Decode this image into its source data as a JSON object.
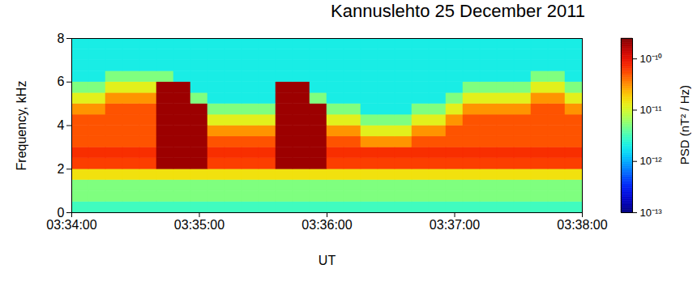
{
  "chart_data": {
    "type": "heatmap",
    "title": "Kannuslehto 25 December 2011",
    "x_label": "UT",
    "y_label": "Frequency, kHz",
    "xlim": [
      0,
      240
    ],
    "xticks": [
      {
        "value": 0,
        "label": "03:34:00"
      },
      {
        "value": 60,
        "label": "03:35:00"
      },
      {
        "value": 120,
        "label": "03:36:00"
      },
      {
        "value": 180,
        "label": "03:37:00"
      },
      {
        "value": 240,
        "label": "03:38:00"
      }
    ],
    "ylim": [
      0,
      8
    ],
    "yticks": [
      0,
      2,
      4,
      6,
      8
    ],
    "time_bins": [
      0,
      8,
      16,
      24,
      32,
      40,
      48,
      56,
      64,
      72,
      80,
      88,
      96,
      104,
      112,
      120,
      128,
      136,
      144,
      152,
      160,
      168,
      176,
      184,
      192,
      200,
      208,
      216,
      224,
      232,
      240
    ],
    "freq_bins": [
      0,
      0.5,
      1,
      1.5,
      2,
      2.5,
      3,
      3.5,
      4,
      4.5,
      5,
      5.5,
      6,
      6.5,
      7,
      7.5,
      8
    ],
    "values": [
      [
        3e-12,
        3e-12,
        3e-12,
        3e-12,
        3e-12,
        3e-12,
        3e-12,
        3e-12,
        3e-12,
        3e-12,
        3e-12,
        3e-12,
        3e-12,
        3e-12,
        3e-12,
        3e-12,
        3e-12,
        3e-12,
        3e-12,
        3e-12,
        3e-12,
        3e-12,
        3e-12,
        3e-12,
        3e-12,
        3e-12,
        3e-12,
        3e-12,
        3e-12,
        3e-12
      ],
      [
        5e-12,
        5e-12,
        5e-12,
        5e-12,
        5e-12,
        5e-12,
        5e-12,
        5e-12,
        5e-12,
        5e-12,
        5e-12,
        5e-12,
        5e-12,
        5e-12,
        5e-12,
        5e-12,
        5e-12,
        5e-12,
        5e-12,
        5e-12,
        5e-12,
        5e-12,
        5e-12,
        5e-12,
        5e-12,
        5e-12,
        5e-12,
        5e-12,
        5e-12,
        5e-12
      ],
      [
        5e-12,
        5e-12,
        5e-12,
        5e-12,
        5e-12,
        5e-12,
        5e-12,
        5e-12,
        5e-12,
        5e-12,
        5e-12,
        5e-12,
        5e-12,
        5e-12,
        5e-12,
        5e-12,
        5e-12,
        5e-12,
        5e-12,
        5e-12,
        5e-12,
        5e-12,
        5e-12,
        5e-12,
        5e-12,
        5e-12,
        5e-12,
        5e-12,
        5e-12,
        5e-12
      ],
      [
        1.5e-11,
        1.5e-11,
        1.5e-11,
        1.5e-11,
        1.5e-11,
        1.5e-11,
        1.5e-11,
        1.5e-11,
        1.5e-11,
        1.5e-11,
        1.5e-11,
        1.5e-11,
        1.5e-11,
        1.5e-11,
        1.5e-11,
        1.5e-11,
        1.5e-11,
        1.5e-11,
        1.5e-11,
        1.5e-11,
        1.5e-11,
        1.5e-11,
        1.5e-11,
        1.5e-11,
        1.5e-11,
        1.5e-11,
        1.5e-11,
        1.5e-11,
        1.5e-11,
        1.5e-11
      ],
      [
        6e-11,
        6e-11,
        6e-11,
        6e-11,
        6e-11,
        2e-10,
        2e-10,
        2e-10,
        6e-11,
        6e-11,
        6e-11,
        6e-11,
        2e-10,
        2e-10,
        2e-10,
        6e-11,
        6e-11,
        6e-11,
        6e-11,
        6e-11,
        6e-11,
        6e-11,
        6e-11,
        6e-11,
        6e-11,
        6e-11,
        6e-11,
        6e-11,
        6e-11,
        6e-11
      ],
      [
        7e-11,
        7e-11,
        7e-11,
        7e-11,
        7e-11,
        2e-10,
        2e-10,
        2e-10,
        7e-11,
        7e-11,
        7e-11,
        7e-11,
        2e-10,
        2e-10,
        2e-10,
        7e-11,
        7e-11,
        7e-11,
        7e-11,
        7e-11,
        7e-11,
        7e-11,
        7e-11,
        7e-11,
        7e-11,
        7e-11,
        7e-11,
        7e-11,
        7e-11,
        7e-11
      ],
      [
        5e-11,
        5e-11,
        5e-11,
        5e-11,
        5e-11,
        2e-10,
        2e-10,
        2e-10,
        5e-11,
        5e-11,
        5e-11,
        5e-11,
        2e-10,
        2e-10,
        2e-10,
        5e-11,
        5e-11,
        3e-11,
        3e-11,
        3e-11,
        5e-11,
        5e-11,
        5e-11,
        5e-11,
        5e-11,
        5e-11,
        5e-11,
        5e-11,
        5e-11,
        5e-11
      ],
      [
        5e-11,
        5e-11,
        5e-11,
        5e-11,
        5e-11,
        2e-10,
        2e-10,
        2e-10,
        3e-11,
        3e-11,
        3e-11,
        3e-11,
        2e-10,
        2e-10,
        2e-10,
        3e-11,
        3e-11,
        1.2e-11,
        1.2e-11,
        1.2e-11,
        3e-11,
        3e-11,
        5e-11,
        5e-11,
        5e-11,
        5e-11,
        5e-11,
        5e-11,
        5e-11,
        5e-11
      ],
      [
        5e-11,
        5e-11,
        5e-11,
        5e-11,
        5e-11,
        2e-10,
        2e-10,
        2e-10,
        1.2e-11,
        1.2e-11,
        1.2e-11,
        1.2e-11,
        2e-10,
        2e-10,
        2e-10,
        1.2e-11,
        1.2e-11,
        5e-12,
        5e-12,
        5e-12,
        1.2e-11,
        1.2e-11,
        3e-11,
        5e-11,
        5e-11,
        5e-11,
        5e-11,
        5e-11,
        5e-11,
        5e-11
      ],
      [
        3e-11,
        3e-11,
        5e-11,
        5e-11,
        5e-11,
        2e-10,
        2e-10,
        2e-10,
        5e-12,
        5e-12,
        5e-12,
        5e-12,
        2e-10,
        2e-10,
        2e-10,
        5e-12,
        5e-12,
        2e-12,
        2e-12,
        2e-12,
        5e-12,
        5e-12,
        1.2e-11,
        3e-11,
        3e-11,
        3e-11,
        3e-11,
        5e-11,
        5e-11,
        3e-11
      ],
      [
        1.2e-11,
        1.2e-11,
        3e-11,
        3e-11,
        3e-11,
        2e-10,
        2e-10,
        5e-12,
        2e-12,
        2e-12,
        2e-12,
        2e-12,
        2e-10,
        2e-10,
        5e-12,
        2e-12,
        2e-12,
        2e-12,
        2e-12,
        2e-12,
        2e-12,
        2e-12,
        5e-12,
        1.2e-11,
        1.2e-11,
        1.2e-11,
        1.2e-11,
        3e-11,
        3e-11,
        1.2e-11
      ],
      [
        5e-12,
        5e-12,
        1.2e-11,
        1.2e-11,
        1.2e-11,
        2e-10,
        2e-10,
        2e-12,
        2e-12,
        2e-12,
        2e-12,
        2e-12,
        2e-10,
        2e-10,
        2e-12,
        2e-12,
        2e-12,
        2e-12,
        2e-12,
        2e-12,
        2e-12,
        2e-12,
        2e-12,
        5e-12,
        5e-12,
        5e-12,
        5e-12,
        1.2e-11,
        1.2e-11,
        5e-12
      ],
      [
        2e-12,
        2e-12,
        5e-12,
        5e-12,
        5e-12,
        5e-12,
        2e-12,
        2e-12,
        2e-12,
        2e-12,
        2e-12,
        2e-12,
        2e-12,
        2e-12,
        2e-12,
        2e-12,
        2e-12,
        2e-12,
        2e-12,
        2e-12,
        2e-12,
        2e-12,
        2e-12,
        2e-12,
        2e-12,
        2e-12,
        2e-12,
        5e-12,
        5e-12,
        2e-12
      ],
      [
        2e-12,
        2e-12,
        2e-12,
        2e-12,
        2e-12,
        2e-12,
        2e-12,
        2e-12,
        2e-12,
        2e-12,
        2e-12,
        2e-12,
        2e-12,
        2e-12,
        2e-12,
        2e-12,
        2e-12,
        2e-12,
        2e-12,
        2e-12,
        2e-12,
        2e-12,
        2e-12,
        2e-12,
        2e-12,
        2e-12,
        2e-12,
        2e-12,
        2e-12,
        2e-12
      ],
      [
        2e-12,
        2e-12,
        2e-12,
        2e-12,
        2e-12,
        2e-12,
        2e-12,
        2e-12,
        2e-12,
        2e-12,
        2e-12,
        2e-12,
        2e-12,
        2e-12,
        2e-12,
        2e-12,
        2e-12,
        2e-12,
        2e-12,
        2e-12,
        2e-12,
        2e-12,
        2e-12,
        2e-12,
        2e-12,
        2e-12,
        2e-12,
        2e-12,
        2e-12,
        2e-12
      ],
      [
        2e-12,
        2e-12,
        2e-12,
        2e-12,
        2e-12,
        2e-12,
        2e-12,
        2e-12,
        2e-12,
        2e-12,
        2e-12,
        2e-12,
        2e-12,
        2e-12,
        2e-12,
        2e-12,
        2e-12,
        2e-12,
        2e-12,
        2e-12,
        2e-12,
        2e-12,
        2e-12,
        2e-12,
        2e-12,
        2e-12,
        2e-12,
        2e-12,
        2e-12,
        2e-12
      ]
    ],
    "colorbar": {
      "label": "PSD (nT² / Hz)",
      "log": true,
      "range": [
        1e-13,
        2.5e-10
      ],
      "ticks": [
        {
          "value": 1e-13,
          "label": "10⁻¹³"
        },
        {
          "value": 1e-12,
          "label": "10⁻¹²"
        },
        {
          "value": 1e-11,
          "label": "10⁻¹¹"
        },
        {
          "value": 1e-10,
          "label": "10⁻¹⁰"
        }
      ]
    }
  }
}
